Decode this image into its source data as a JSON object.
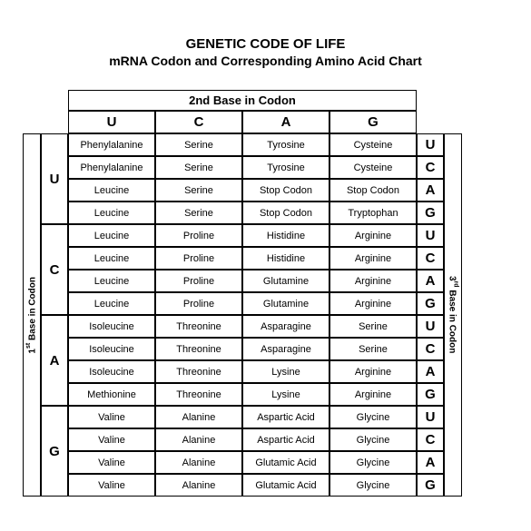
{
  "title1": "GENETIC CODE OF LIFE",
  "title2": "mRNA Codon and Corresponding Amino Acid Chart",
  "header_row": "2nd Base in Codon",
  "left_label": "1ˢᵗ Base in Codon",
  "right_label": "3ʳᵈ Base in Codon",
  "bases": [
    "U",
    "C",
    "A",
    "G"
  ],
  "cells": {
    "UU": [
      "Phenylalanine",
      "Phenylalanine",
      "Leucine",
      "Leucine"
    ],
    "UC": [
      "Serine",
      "Serine",
      "Serine",
      "Serine"
    ],
    "UA": [
      "Tyrosine",
      "Tyrosine",
      "Stop Codon",
      "Stop Codon"
    ],
    "UG": [
      "Cysteine",
      "Cysteine",
      "Stop Codon",
      "Tryptophan"
    ],
    "CU": [
      "Leucine",
      "Leucine",
      "Leucine",
      "Leucine"
    ],
    "CC": [
      "Proline",
      "Proline",
      "Proline",
      "Proline"
    ],
    "CA": [
      "Histidine",
      "Histidine",
      "Glutamine",
      "Glutamine"
    ],
    "CG": [
      "Arginine",
      "Arginine",
      "Arginine",
      "Arginine"
    ],
    "AU": [
      "Isoleucine",
      "Isoleucine",
      "Isoleucine",
      "Methionine"
    ],
    "AC": [
      "Threonine",
      "Threonine",
      "Threonine",
      "Threonine"
    ],
    "AA": [
      "Asparagine",
      "Asparagine",
      "Lysine",
      "Lysine"
    ],
    "AG": [
      "Serine",
      "Serine",
      "Arginine",
      "Arginine"
    ],
    "GU": [
      "Valine",
      "Valine",
      "Valine",
      "Valine"
    ],
    "GC": [
      "Alanine",
      "Alanine",
      "Alanine",
      "Alanine"
    ],
    "GA": [
      "Aspartic Acid",
      "Aspartic Acid",
      "Glutamic Acid",
      "Glutamic Acid"
    ],
    "GG": [
      "Glycine",
      "Glycine",
      "Glycine",
      "Glycine"
    ]
  }
}
